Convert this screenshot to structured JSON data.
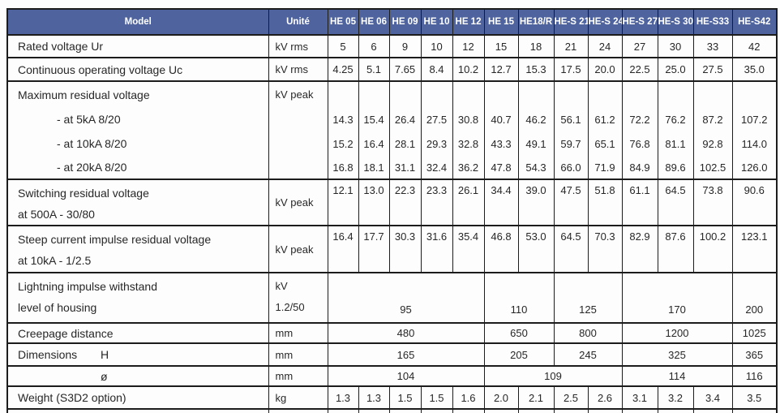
{
  "colors": {
    "header_bg": "#4f649e",
    "header_text": "#ffffff",
    "border": "#1c1c1c",
    "text": "#272727"
  },
  "table": {
    "header": {
      "model": "Model",
      "unit": "Unité",
      "columns": [
        "HE 05",
        "HE 06",
        "HE 09",
        "HE 10",
        "HE 12",
        "HE 15",
        "HE18/R",
        "HE-S 21",
        "HE-S 24",
        "HE-S 27",
        "HE-S 30",
        "HE-S33",
        "HE-S42"
      ]
    },
    "rows": [
      {
        "type": "simple",
        "label": "Rated voltage Ur",
        "unit": "kV rms",
        "values": [
          "5",
          "6",
          "9",
          "10",
          "12",
          "15",
          "18",
          "21",
          "24",
          "27",
          "30",
          "33",
          "42"
        ]
      },
      {
        "type": "simple",
        "label": "Continuous operating voltage Uc",
        "unit": "kV rms",
        "values": [
          "4.25",
          "5.1",
          "7.65",
          "8.4",
          "10.2",
          "12.7",
          "15.3",
          "17.5",
          "20.0",
          "22.5",
          "25.0",
          "27.5",
          "35.0"
        ]
      },
      {
        "type": "group-head",
        "label": "Maximum residual voltage",
        "unit": "kV peak"
      },
      {
        "type": "group-sub",
        "label": "- at 5kA 8/20",
        "values": [
          "14.3",
          "15.4",
          "26.4",
          "27.5",
          "30.8",
          "40.7",
          "46.2",
          "56.1",
          "61.2",
          "72.2",
          "76.2",
          "87.2",
          "107.2"
        ]
      },
      {
        "type": "group-sub",
        "label": "- at 10kA 8/20",
        "values": [
          "15.2",
          "16.4",
          "28.1",
          "29.3",
          "32.8",
          "43.3",
          "49.1",
          "59.7",
          "65.1",
          "76.8",
          "81.1",
          "92.8",
          "114.0"
        ]
      },
      {
        "type": "group-sub",
        "label": "- at 20kA 8/20",
        "values": [
          "16.8",
          "18.1",
          "31.1",
          "32.4",
          "36.2",
          "47.8",
          "54.3",
          "66.0",
          "71.9",
          "84.9",
          "89.6",
          "102.5",
          "126.0"
        ]
      },
      {
        "type": "two-line",
        "label": "Switching residual voltage",
        "label2": "at 500A - 30/80",
        "unit": "kV peak",
        "valign": "top",
        "values": [
          "12.1",
          "13.0",
          "22.3",
          "23.3",
          "26.1",
          "34.4",
          "39.0",
          "47.5",
          "51.8",
          "61.1",
          "64.5",
          "73.8",
          "90.6"
        ]
      },
      {
        "type": "two-line",
        "label": "Steep current impulse residual voltage",
        "label2": "at 10kA - 1/2.5",
        "unit": "kV peak",
        "valign": "top",
        "values": [
          "16.4",
          "17.7",
          "30.3",
          "31.6",
          "35.4",
          "46.8",
          "53.0",
          "64.5",
          "70.3",
          "82.9",
          "87.6",
          "100.2",
          "123.1"
        ]
      },
      {
        "type": "two-line-merged",
        "label": "Lightning impulse withstand",
        "label2": "level of housing",
        "unit": "kV",
        "unit2": "1.2/50",
        "valign": "bottom",
        "merged": [
          {
            "value": "95",
            "span": 5
          },
          {
            "value": "110",
            "span": 2
          },
          {
            "value": "125",
            "span": 2
          },
          {
            "value": "170",
            "span": 3
          },
          {
            "value": "200",
            "span": 1
          }
        ]
      },
      {
        "type": "merged",
        "label": "Creepage distance",
        "unit": "mm",
        "merged": [
          {
            "value": "480",
            "span": 5
          },
          {
            "value": "650",
            "span": 2
          },
          {
            "value": "800",
            "span": 2
          },
          {
            "value": "1200",
            "span": 3
          },
          {
            "value": "1025",
            "span": 1
          }
        ]
      },
      {
        "type": "merged",
        "label": "Dimensions",
        "sublabel": "H",
        "unit": "mm",
        "merged": [
          {
            "value": "165",
            "span": 5
          },
          {
            "value": "205",
            "span": 2
          },
          {
            "value": "245",
            "span": 2
          },
          {
            "value": "325",
            "span": 3
          },
          {
            "value": "365",
            "span": 1
          }
        ]
      },
      {
        "type": "merged",
        "label": "",
        "sublabel": "ø",
        "unit": "mm",
        "merged": [
          {
            "value": "104",
            "span": 5
          },
          {
            "value": "109",
            "span": 4
          },
          {
            "value": "114",
            "span": 3
          },
          {
            "value": "116",
            "span": 1
          }
        ]
      },
      {
        "type": "simple",
        "label": "Weight (S3D2 option)",
        "unit": "kg",
        "values": [
          "1.3",
          "1.3",
          "1.5",
          "1.5",
          "1.6",
          "2.0",
          "2.1",
          "2.5",
          "2.6",
          "3.1",
          "3.2",
          "3.4",
          "3.5"
        ]
      }
    ]
  }
}
